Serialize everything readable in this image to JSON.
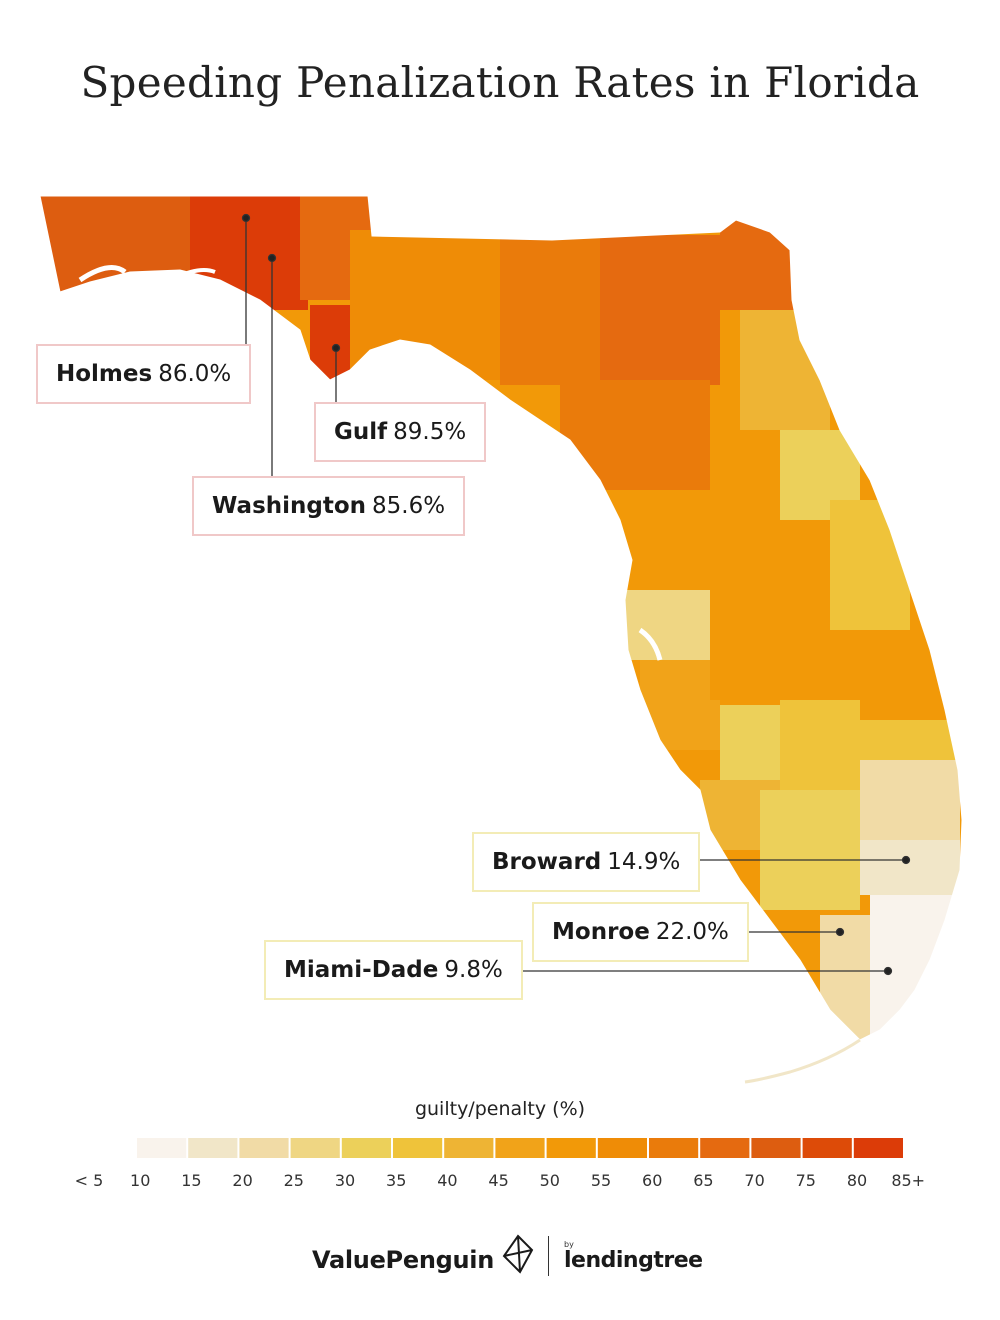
{
  "title": "Speeding Penalization Rates in Florida",
  "colors": {
    "scale": [
      "#f9f3ec",
      "#f1e6c8",
      "#f1dba6",
      "#efd683",
      "#ecd05a",
      "#efc33a",
      "#eeb434",
      "#f1a319",
      "#f29908",
      "#ef8c06",
      "#ea7b0b",
      "#e56a10",
      "#dd5d10",
      "#dd4b08",
      "#dc3c08"
    ]
  },
  "legend": {
    "title": "guilty/penalty (%)",
    "ticks": [
      "< 5",
      "10",
      "15",
      "20",
      "25",
      "30",
      "35",
      "40",
      "45",
      "50",
      "55",
      "60",
      "65",
      "70",
      "75",
      "80",
      "85+"
    ]
  },
  "callouts": [
    {
      "name": "Holmes",
      "value": "86.0%"
    },
    {
      "name": "Gulf",
      "value": "89.5%"
    },
    {
      "name": "Washington",
      "value": "85.6%"
    },
    {
      "name": "Broward",
      "value": "14.9%"
    },
    {
      "name": "Monroe",
      "value": "22.0%"
    },
    {
      "name": "Miami-Dade",
      "value": "9.8%"
    }
  ],
  "footer": {
    "brand": "ValuePenguin",
    "partner_prefix": "by",
    "partner": "lendingtree"
  }
}
